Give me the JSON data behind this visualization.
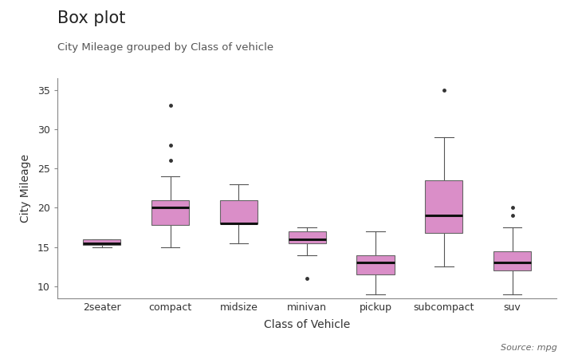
{
  "title": "Box plot",
  "subtitle": "City Mileage grouped by Class of vehicle",
  "xlabel": "Class of Vehicle",
  "ylabel": "City Mileage",
  "source": "Source: mpg",
  "categories": [
    "2seater",
    "compact",
    "midsize",
    "minivan",
    "pickup",
    "subcompact",
    "suv"
  ],
  "box_color": "#DA8EC8",
  "median_color": "#111111",
  "whisker_color": "#555555",
  "box_edge_color": "#666666",
  "background_color": "#FFFFFF",
  "boxes": {
    "2seater": {
      "q1": 15.3,
      "median": 15.5,
      "q3": 16.0,
      "whislo": 15.0,
      "whishi": 16.0,
      "fliers": []
    },
    "compact": {
      "q1": 17.8,
      "median": 20.0,
      "q3": 21.0,
      "whislo": 15.0,
      "whishi": 24.0,
      "fliers": [
        26.0,
        28.0,
        33.0
      ]
    },
    "midsize": {
      "q1": 18.0,
      "median": 18.0,
      "q3": 21.0,
      "whislo": 15.5,
      "whishi": 23.0,
      "fliers": []
    },
    "minivan": {
      "q1": 15.5,
      "median": 16.0,
      "q3": 17.0,
      "whislo": 14.0,
      "whishi": 17.5,
      "fliers": [
        11.0
      ]
    },
    "pickup": {
      "q1": 11.5,
      "median": 13.0,
      "q3": 14.0,
      "whislo": 9.0,
      "whishi": 17.0,
      "fliers": []
    },
    "subcompact": {
      "q1": 16.8,
      "median": 19.0,
      "q3": 23.5,
      "whislo": 12.5,
      "whishi": 29.0,
      "fliers": [
        35.0
      ]
    },
    "suv": {
      "q1": 12.0,
      "median": 13.0,
      "q3": 14.5,
      "whislo": 9.0,
      "whishi": 17.5,
      "fliers": [
        19.0,
        20.0
      ]
    }
  },
  "ylim": [
    8.5,
    36.5
  ],
  "yticks": [
    10,
    15,
    20,
    25,
    30,
    35
  ],
  "figsize": [
    7.2,
    4.45
  ],
  "dpi": 100,
  "title_fontsize": 15,
  "subtitle_fontsize": 9.5,
  "axis_label_fontsize": 10,
  "tick_fontsize": 9,
  "source_fontsize": 8
}
